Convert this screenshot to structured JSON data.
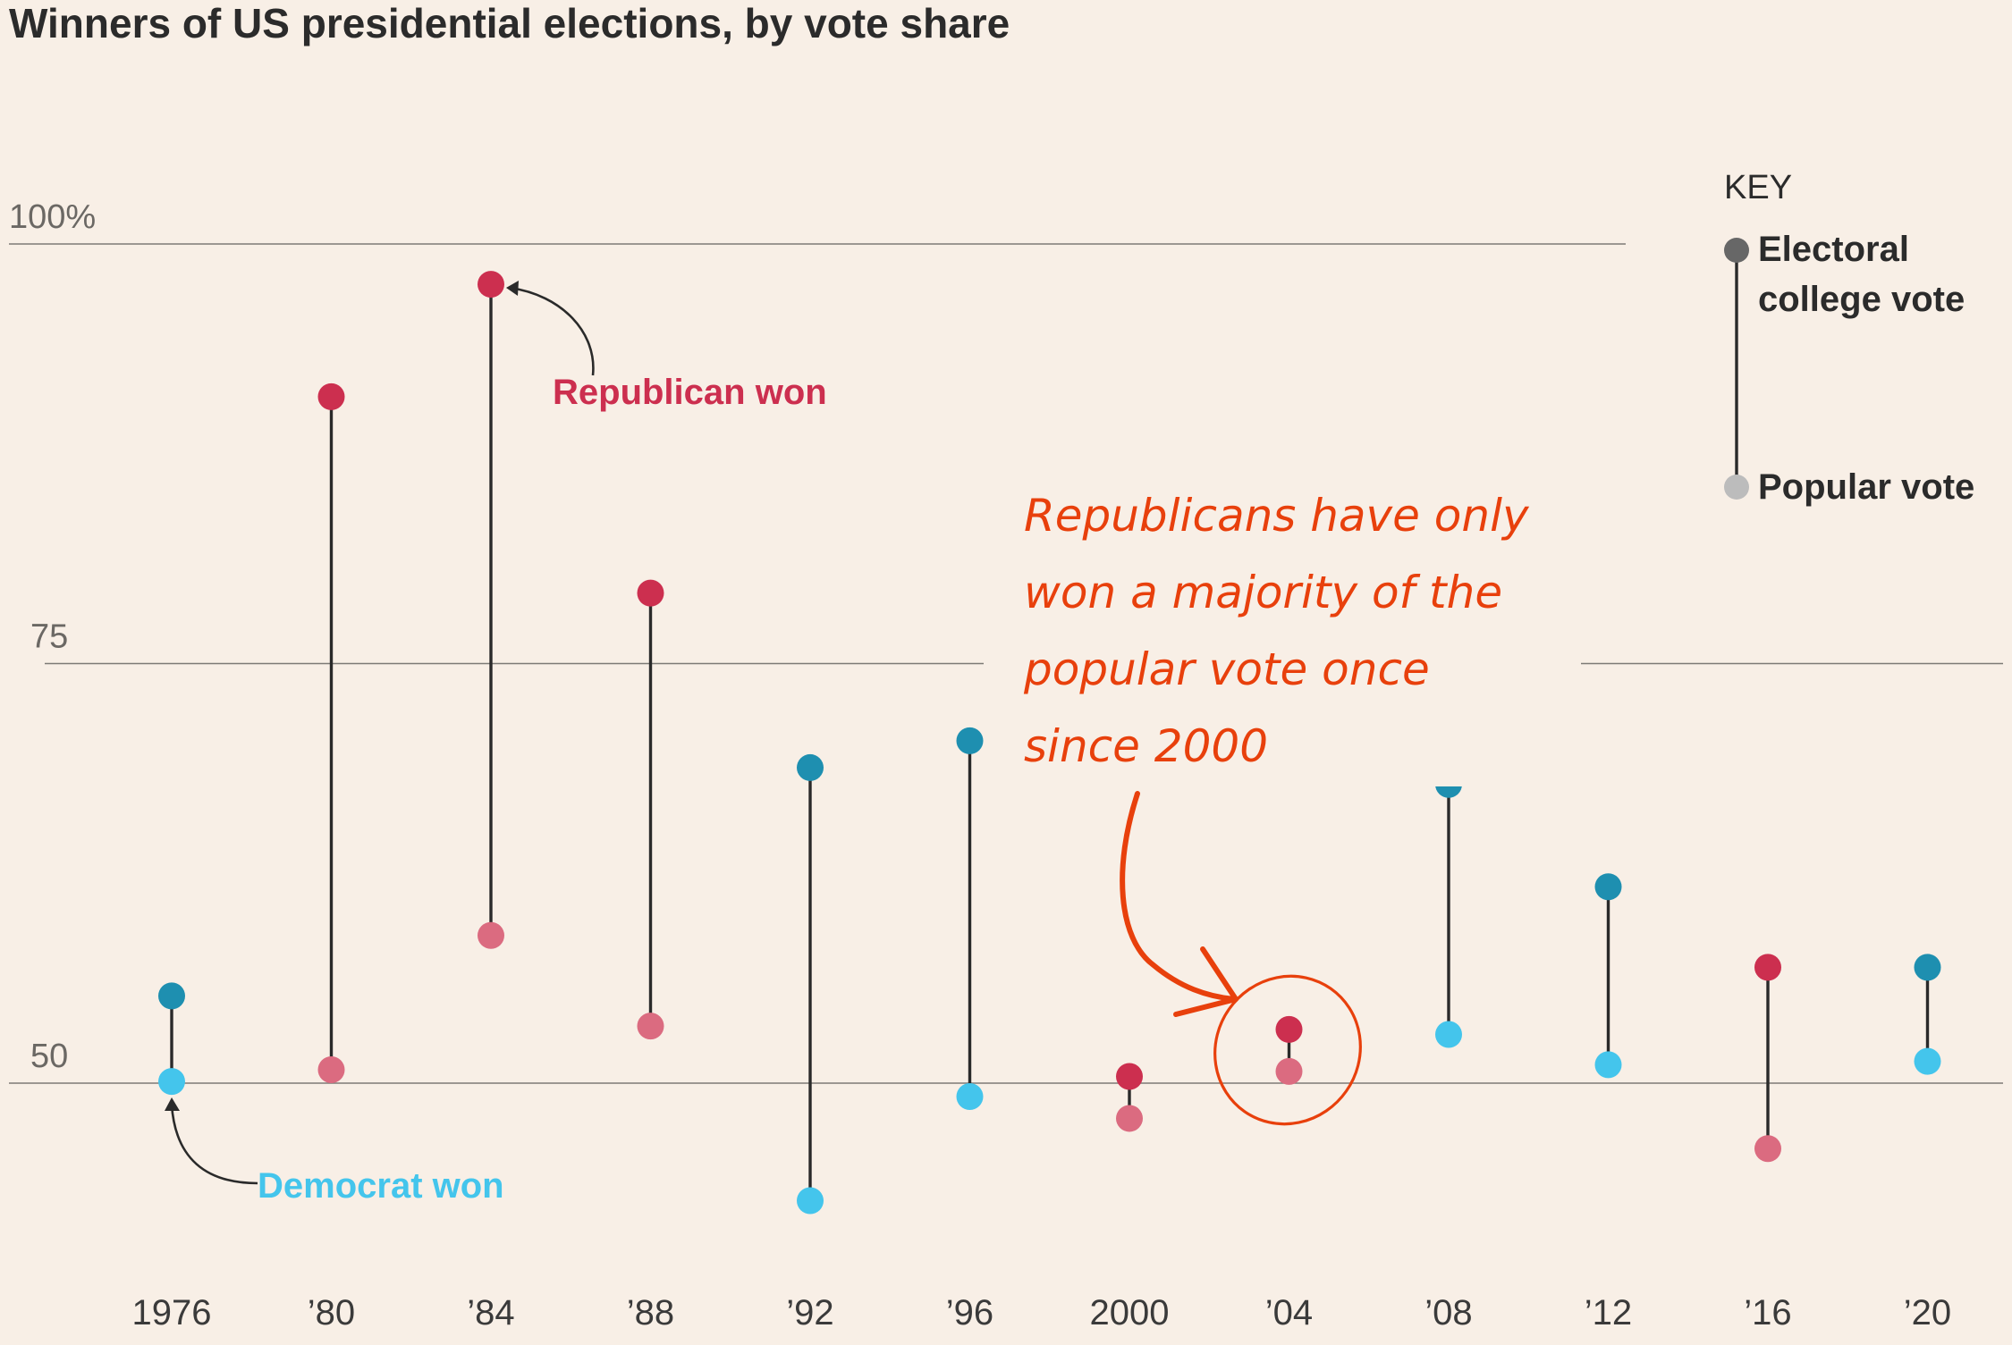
{
  "chart_data": {
    "type": "dumbbell",
    "title": "Winners of US presidential elections, by vote share",
    "xlabel": "",
    "ylabel": "",
    "ylim": [
      43,
      100
    ],
    "yticks": [
      {
        "value": 100,
        "label": "100%"
      },
      {
        "value": 75,
        "label": "75"
      },
      {
        "value": 50,
        "label": "50"
      }
    ],
    "categories": [
      "1976",
      "’80",
      "’84",
      "’88",
      "’92",
      "’96",
      "2000",
      "’04",
      "’08",
      "’12",
      "’16",
      "’20"
    ],
    "winner_party": [
      "D",
      "R",
      "R",
      "R",
      "D",
      "D",
      "R",
      "R",
      "D",
      "D",
      "R",
      "D"
    ],
    "series": [
      {
        "name": "Electoral college vote",
        "values": [
          55.2,
          90.9,
          97.6,
          79.2,
          68.8,
          70.4,
          50.4,
          53.2,
          67.8,
          61.7,
          56.9,
          56.9
        ]
      },
      {
        "name": "Popular vote",
        "values": [
          50.1,
          50.8,
          58.8,
          53.4,
          43.0,
          49.2,
          47.9,
          50.7,
          52.9,
          51.1,
          46.1,
          51.3
        ]
      }
    ],
    "colors": {
      "republican_electoral": "#cc2f4f",
      "republican_popular": "#db6b80",
      "democrat_electoral": "#1e8fb0",
      "democrat_popular": "#44c5ec",
      "annotation": "#e8400c",
      "key_electoral": "#676767",
      "key_popular": "#bcbcbc"
    },
    "legend": {
      "heading": "KEY",
      "electoral_label_line1": "Electoral",
      "electoral_label_line2": "college vote",
      "popular_label": "Popular vote"
    },
    "annotations": {
      "republican_won": "Republican won",
      "democrat_won": "Democrat won",
      "note_lines": [
        "Republicans have only",
        "won a majority of the",
        "popular vote once",
        "since 2000"
      ]
    }
  }
}
